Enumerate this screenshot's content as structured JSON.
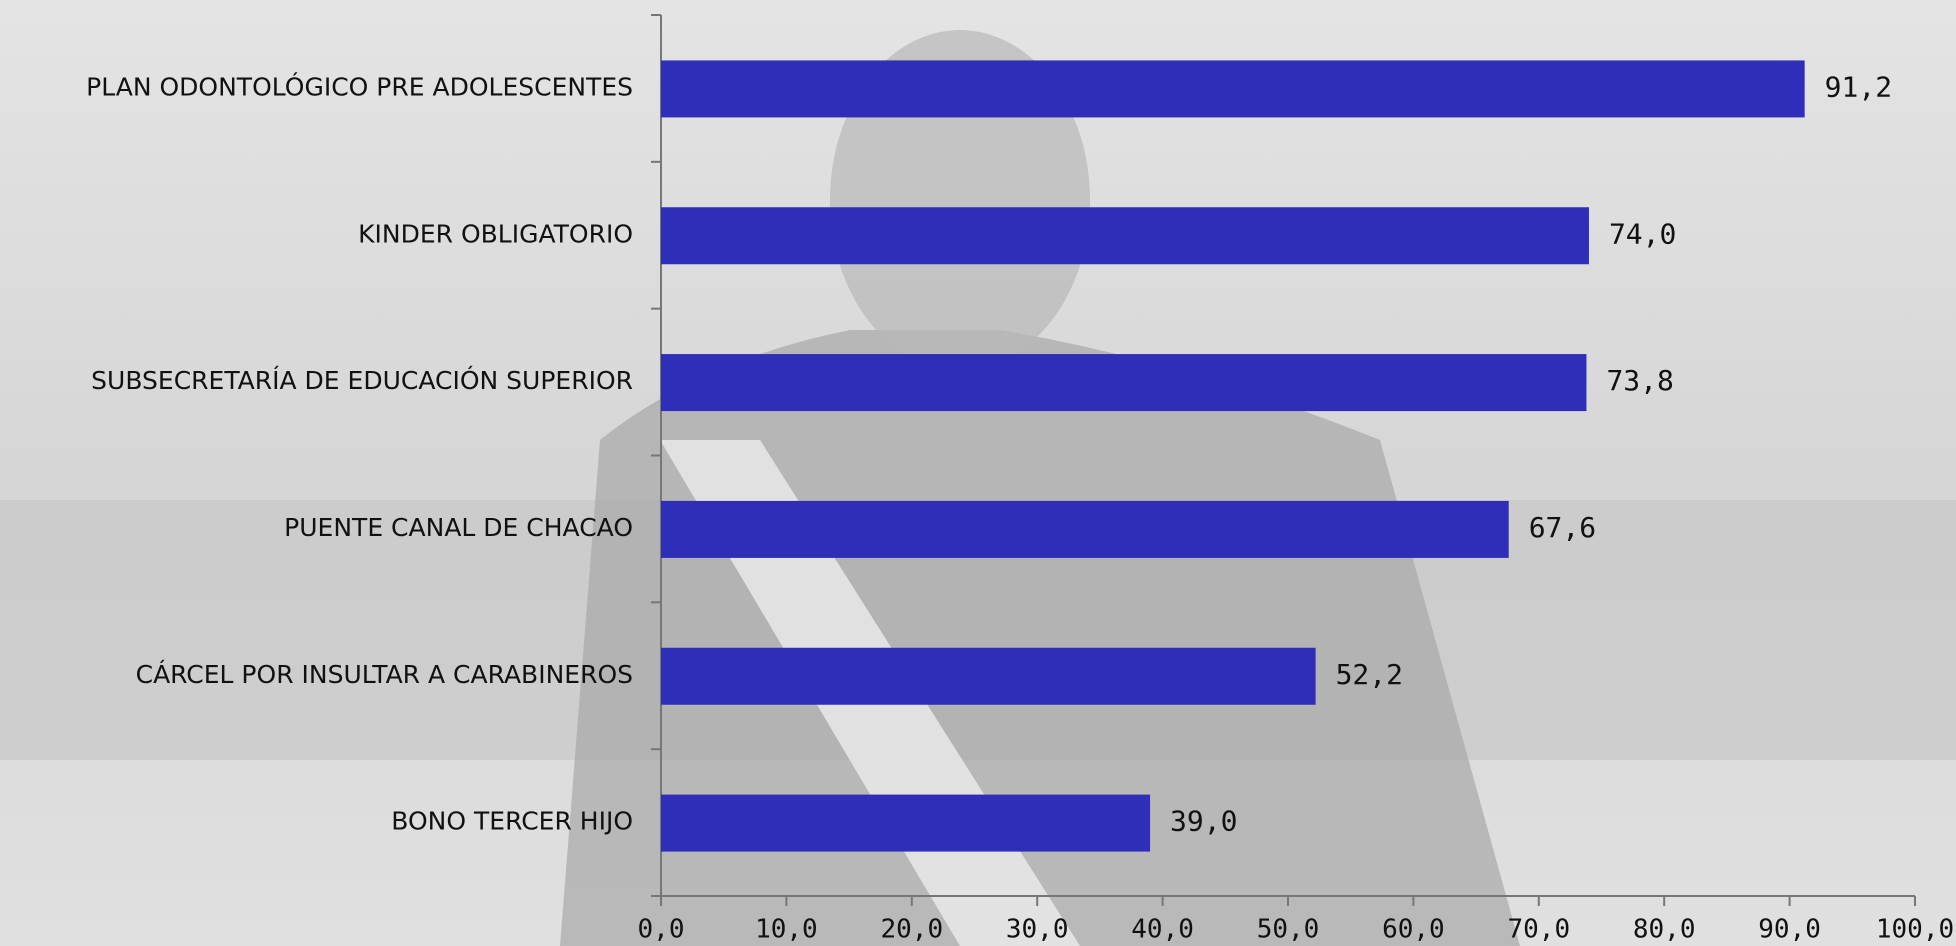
{
  "chart_data": {
    "type": "bar",
    "orientation": "horizontal",
    "categories": [
      "PLAN ODONTOLÓGICO PRE ADOLESCENTES",
      "KINDER OBLIGATORIO",
      "SUBSECRETARÍA DE EDUCACIÓN SUPERIOR",
      "PUENTE CANAL DE CHACAO",
      "CÁRCEL POR INSULTAR A CARABINEROS",
      "BONO TERCER HIJO"
    ],
    "values": [
      91.2,
      74.0,
      73.8,
      67.6,
      52.2,
      39.0
    ],
    "value_labels": [
      "91,2",
      "74,0",
      "73,8",
      "67,6",
      "52,2",
      "39,0"
    ],
    "color": "#2e2eb8",
    "xlim": [
      0,
      100
    ],
    "xticks": [
      {
        "value": 0,
        "label": "0,0"
      },
      {
        "value": 10,
        "label": "10,0"
      },
      {
        "value": 20,
        "label": "20,0"
      },
      {
        "value": 30,
        "label": "30,0"
      },
      {
        "value": 40,
        "label": "40,0"
      },
      {
        "value": 50,
        "label": "50,0"
      },
      {
        "value": 60,
        "label": "60,0"
      },
      {
        "value": 70,
        "label": "70,0"
      },
      {
        "value": 80,
        "label": "80,0"
      },
      {
        "value": 90,
        "label": "90,0"
      },
      {
        "value": 100,
        "label": "100,0"
      }
    ]
  }
}
